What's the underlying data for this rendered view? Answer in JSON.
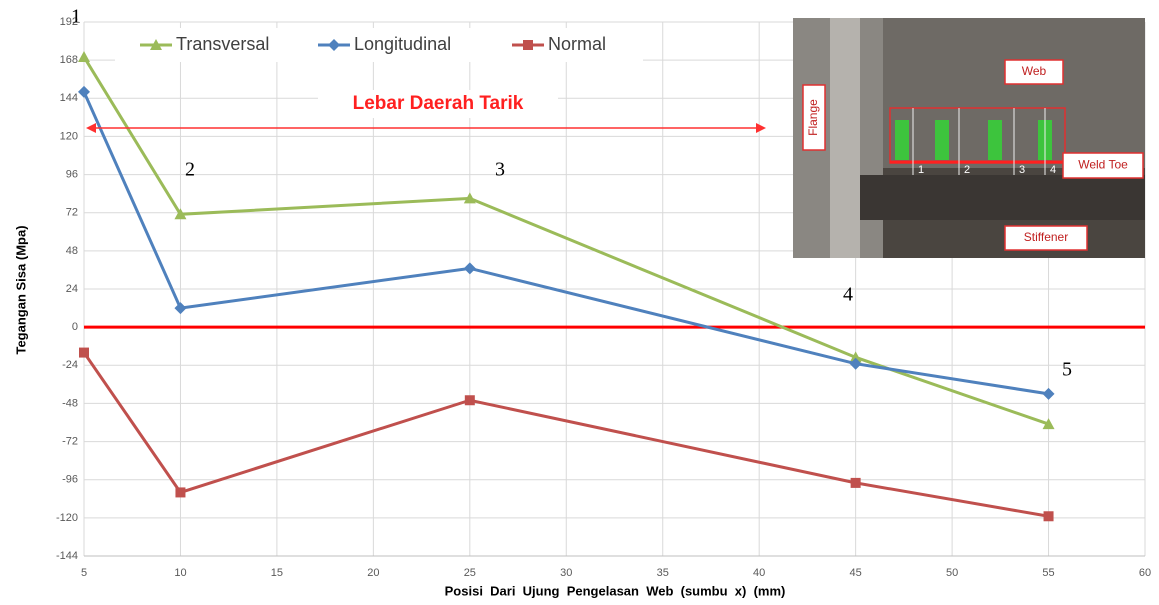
{
  "chart_data": {
    "type": "line",
    "x_label": "Posisi  Dari  Ujung  Pengelasan  Web  (sumbu  x)  (mm)",
    "y_label": "Tegangan  Sisa  (Mpa)",
    "x": [
      5,
      10,
      25,
      45,
      55
    ],
    "series": [
      {
        "name": "Transversal",
        "color": "#9bbb59",
        "marker": "triangle",
        "values": [
          170,
          71,
          81,
          -19,
          -61
        ]
      },
      {
        "name": "Longitudinal",
        "color": "#4f81bd",
        "marker": "diamond",
        "values": [
          148,
          12,
          37,
          -23,
          -42
        ]
      },
      {
        "name": "Normal",
        "color": "#c0504d",
        "marker": "square",
        "values": [
          -16,
          -104,
          -46,
          -98,
          -119
        ]
      }
    ],
    "zero_line": {
      "value": 0,
      "color": "#ff0000"
    },
    "xlim": [
      5,
      60
    ],
    "xticks": [
      5,
      10,
      15,
      20,
      25,
      30,
      35,
      40,
      45,
      50,
      55,
      60
    ],
    "ylim": [
      -144,
      192
    ],
    "yticks": [
      -144,
      -120,
      -96,
      -72,
      -48,
      -24,
      0,
      24,
      48,
      72,
      96,
      120,
      144,
      168,
      192
    ],
    "grid": true,
    "legend": "top",
    "annotations": [
      "Lebar Daerah Tarik",
      "1",
      "2",
      "3",
      "4",
      "5"
    ],
    "inset": {
      "labels": [
        "Web",
        "Flange",
        "Weld Toe",
        "Stiffener"
      ],
      "numbers": [
        "1",
        "2",
        "3",
        "4"
      ]
    }
  }
}
